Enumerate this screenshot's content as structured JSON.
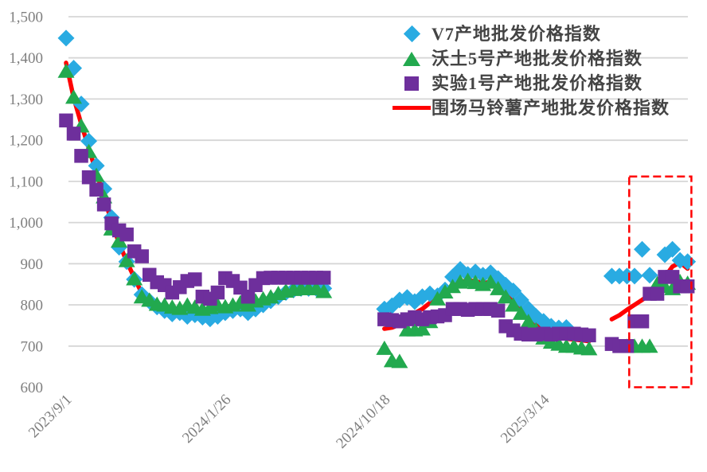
{
  "page": {
    "background": "#ffffff"
  },
  "chart_data": {
    "type": "scatter",
    "title": "",
    "legend_position": "top-right",
    "grid": "horizontal",
    "y_axis": {
      "min": 600,
      "max": 1500,
      "step": 100,
      "tick_labels": [
        "600",
        "700",
        "800",
        "900",
        "1,000",
        "1,100",
        "1,200",
        "1,300",
        "1,400",
        "1,500"
      ],
      "gridline_values": [
        700,
        800,
        900,
        1000,
        1100,
        1200,
        1300,
        1400,
        1500
      ],
      "label_color": "#7f7f7f",
      "gridline_color": "#d6d6d6"
    },
    "x_axis": {
      "category_count": 83,
      "tick_labels": [
        {
          "index": 0,
          "label": "2023/9/1"
        },
        {
          "index": 21,
          "label": "2024/1/26"
        },
        {
          "index": 42,
          "label": "2024/10/18"
        },
        {
          "index": 63,
          "label": "2025/3/14"
        }
      ],
      "label_color": "#7f7f7f",
      "label_angle_deg": -45
    },
    "legend": [
      {
        "label": "V7产地批发价格指数",
        "marker": "diamond",
        "color": "#29ABE2"
      },
      {
        "label": "沃土5号产地批发价格指数",
        "marker": "triangle",
        "color": "#22A94E"
      },
      {
        "label": "实验1号产地批发价格指数",
        "marker": "square",
        "color": "#6E2F9C"
      },
      {
        "label": "围场马铃薯产地批发价格指数",
        "marker": "line",
        "color": "#FF0000"
      }
    ],
    "series": [
      {
        "name": "V7产地批发价格指数",
        "marker": "diamond",
        "color": "#29ABE2",
        "values": [
          1448,
          1375,
          1288,
          1198,
          1138,
          1082,
          1012,
          940,
          905,
          862,
          825,
          809,
          795,
          786,
          778,
          781,
          772,
          776,
          770,
          766,
          772,
          781,
          786,
          790,
          781,
          790,
          800,
          810,
          820,
          830,
          836,
          840,
          840,
          840,
          840,
          null,
          null,
          null,
          null,
          null,
          null,
          null,
          790,
          798,
          812,
          818,
          808,
          820,
          827,
          822,
          836,
          868,
          886,
          874,
          880,
          872,
          878,
          864,
          848,
          834,
          812,
          790,
          772,
          760,
          748,
          744,
          745,
          null,
          null,
          null,
          null,
          null,
          870,
          870,
          870,
          870,
          935,
          872,
          null,
          922,
          935,
          908,
          905
        ]
      },
      {
        "name": "沃土5号产地批发价格指数",
        "marker": "triangle",
        "color": "#22A94E",
        "values": [
          1368,
          1305,
          1235,
          1173,
          1115,
          1063,
          985,
          956,
          908,
          864,
          820,
          812,
          802,
          800,
          795,
          792,
          800,
          795,
          790,
          794,
          800,
          796,
          800,
          806,
          800,
          810,
          815,
          820,
          828,
          834,
          838,
          840,
          840,
          840,
          833,
          null,
          null,
          null,
          null,
          null,
          null,
          null,
          695,
          665,
          663,
          740,
          740,
          742,
          760,
          815,
          832,
          845,
          856,
          860,
          855,
          850,
          856,
          840,
          820,
          800,
          780,
          760,
          740,
          720,
          710,
          705,
          700,
          700,
          696,
          694,
          null,
          null,
          null,
          null,
          700,
          700,
          700,
          700,
          852,
          845,
          840,
          857,
          853
        ]
      },
      {
        "name": "实验1号产地批发价格指数",
        "marker": "square",
        "color": "#6E2F9C",
        "values": [
          1248,
          1216,
          1162,
          1110,
          1080,
          1044,
          998,
          981,
          971,
          930,
          918,
          873,
          855,
          848,
          830,
          843,
          858,
          862,
          820,
          815,
          830,
          865,
          858,
          842,
          820,
          848,
          865,
          866,
          866,
          866,
          866,
          866,
          866,
          866,
          866,
          null,
          null,
          null,
          null,
          null,
          null,
          null,
          765,
          763,
          760,
          765,
          770,
          765,
          770,
          772,
          775,
          790,
          790,
          788,
          790,
          790,
          790,
          786,
          748,
          738,
          730,
          728,
          728,
          730,
          728,
          730,
          730,
          730,
          728,
          726,
          null,
          null,
          705,
          700,
          700,
          760,
          760,
          827,
          827,
          868,
          868,
          845,
          845
        ]
      },
      {
        "name": "围场马铃薯产地批发价格指数",
        "marker": "line",
        "color": "#FF0000",
        "values": [
          1388,
          1303,
          1240,
          1180,
          1120,
          1065,
          1000,
          950,
          905,
          866,
          828,
          812,
          800,
          795,
          790,
          788,
          790,
          788,
          785,
          786,
          790,
          795,
          798,
          800,
          798,
          805,
          812,
          818,
          825,
          832,
          838,
          840,
          841,
          841,
          839,
          null,
          null,
          null,
          null,
          null,
          null,
          null,
          742,
          745,
          752,
          768,
          780,
          790,
          805,
          820,
          835,
          845,
          855,
          860,
          857,
          854,
          855,
          845,
          830,
          812,
          792,
          772,
          752,
          738,
          728,
          722,
          718,
          716,
          714,
          712,
          null,
          null,
          765,
          775,
          788,
          800,
          812,
          825,
          845,
          868,
          893,
          903,
          888
        ]
      }
    ],
    "annotations": {
      "highlight_box": {
        "style": "red-dashed-rectangle",
        "color": "#FF0000",
        "index_from": 74.3,
        "index_to": 82.5,
        "value_from": 600,
        "value_to": 1112
      }
    }
  }
}
